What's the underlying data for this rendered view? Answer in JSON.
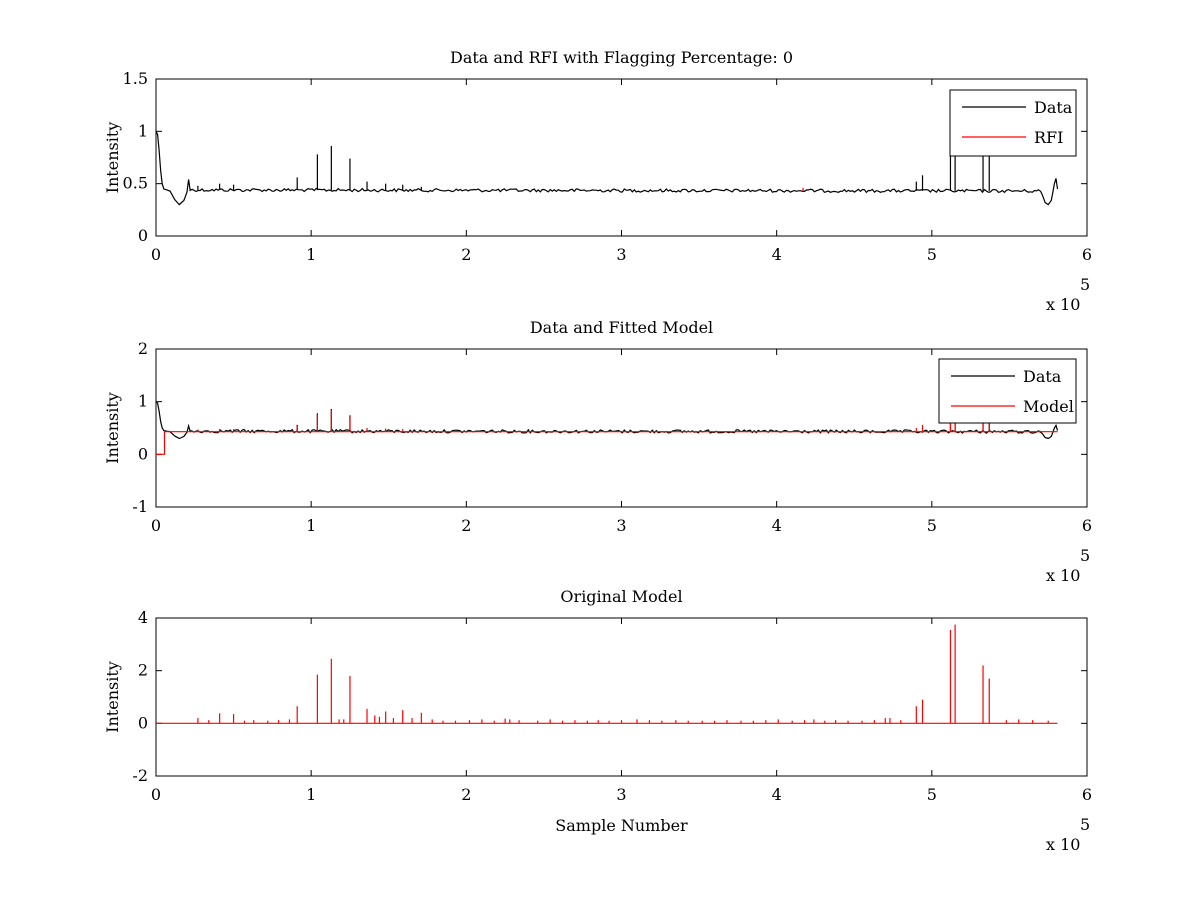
{
  "colors": {
    "data": "#000000",
    "red": "#ff0000",
    "axis": "#000000",
    "background": "#ffffff"
  },
  "chart_data": [
    {
      "type": "line",
      "title": "Data and RFI with Flagging Percentage: 0",
      "xlabel": "",
      "ylabel": "Intensity",
      "xlim": [
        0,
        600000
      ],
      "ylim": [
        0,
        1.5
      ],
      "xticks": [
        "0",
        "1",
        "2",
        "3",
        "4",
        "5",
        "6"
      ],
      "yticks": [
        "0",
        "0.5",
        "1",
        "1.5"
      ],
      "xexponent": {
        "base": "x 10",
        "power": "5"
      },
      "legend": {
        "position": "top-right",
        "entries": [
          "Data",
          "RFI"
        ]
      },
      "series": [
        {
          "name": "Data",
          "color": "#000000",
          "baseline": [
            [
              0,
              1.0
            ],
            [
              1000,
              0.97
            ],
            [
              2000,
              0.82
            ],
            [
              3000,
              0.62
            ],
            [
              4000,
              0.5
            ],
            [
              5000,
              0.45
            ],
            [
              7000,
              0.44
            ],
            [
              9000,
              0.43
            ],
            [
              12000,
              0.35
            ],
            [
              15000,
              0.3
            ],
            [
              18000,
              0.34
            ],
            [
              20000,
              0.42
            ],
            [
              21000,
              0.54
            ],
            [
              22000,
              0.44
            ],
            [
              570000,
              0.43
            ],
            [
              571000,
              0.4
            ],
            [
              573000,
              0.32
            ],
            [
              575000,
              0.3
            ],
            [
              577000,
              0.34
            ],
            [
              579000,
              0.5
            ],
            [
              580000,
              0.55
            ],
            [
              581000,
              0.45
            ]
          ],
          "spikes": [
            [
              27000,
              0.48
            ],
            [
              41000,
              0.5
            ],
            [
              50000,
              0.49
            ],
            [
              91000,
              0.56
            ],
            [
              104000,
              0.78
            ],
            [
              113000,
              0.86
            ],
            [
              125000,
              0.74
            ],
            [
              136000,
              0.52
            ],
            [
              148000,
              0.5
            ],
            [
              159000,
              0.49
            ],
            [
              171000,
              0.47
            ],
            [
              490000,
              0.52
            ],
            [
              494000,
              0.58
            ],
            [
              512000,
              1.0
            ],
            [
              515000,
              1.0
            ],
            [
              533000,
              1.0
            ],
            [
              537000,
              1.0
            ]
          ]
        },
        {
          "name": "RFI",
          "color": "#ff0000",
          "spikes": [
            [
              417000,
              0.46
            ]
          ]
        }
      ]
    },
    {
      "type": "line",
      "title": "Data and Fitted Model",
      "xlabel": "",
      "ylabel": "Intensity",
      "xlim": [
        0,
        600000
      ],
      "ylim": [
        -1,
        2
      ],
      "xticks": [
        "0",
        "1",
        "2",
        "3",
        "4",
        "5",
        "6"
      ],
      "yticks": [
        "-1",
        "0",
        "1",
        "2"
      ],
      "xexponent": {
        "base": "x 10",
        "power": "5"
      },
      "legend": {
        "position": "top-right",
        "entries": [
          "Data",
          "Model"
        ]
      },
      "series": [
        {
          "name": "Data",
          "color": "#000000",
          "baseline": [
            [
              0,
              1.0
            ],
            [
              1000,
              0.97
            ],
            [
              2000,
              0.82
            ],
            [
              3000,
              0.62
            ],
            [
              4000,
              0.5
            ],
            [
              5000,
              0.45
            ],
            [
              7000,
              0.44
            ],
            [
              9000,
              0.43
            ],
            [
              12000,
              0.35
            ],
            [
              15000,
              0.3
            ],
            [
              18000,
              0.34
            ],
            [
              20000,
              0.42
            ],
            [
              21000,
              0.54
            ],
            [
              22000,
              0.44
            ],
            [
              570000,
              0.43
            ],
            [
              571000,
              0.4
            ],
            [
              573000,
              0.32
            ],
            [
              575000,
              0.3
            ],
            [
              577000,
              0.34
            ],
            [
              579000,
              0.5
            ],
            [
              580000,
              0.55
            ],
            [
              581000,
              0.45
            ]
          ],
          "spikes": [
            [
              91000,
              0.56
            ],
            [
              104000,
              0.78
            ],
            [
              113000,
              0.86
            ],
            [
              125000,
              0.74
            ],
            [
              512000,
              1.0
            ],
            [
              515000,
              1.0
            ],
            [
              533000,
              1.0
            ],
            [
              537000,
              1.0
            ]
          ]
        },
        {
          "name": "Model",
          "color": "#ff0000",
          "baseline": [
            [
              0,
              0.0
            ],
            [
              5500,
              0.0
            ],
            [
              5500,
              0.43
            ],
            [
              581000,
              0.43
            ]
          ],
          "spikes": [
            [
              27000,
              0.47
            ],
            [
              41000,
              0.48
            ],
            [
              50000,
              0.48
            ],
            [
              91000,
              0.54
            ],
            [
              104000,
              0.76
            ],
            [
              113000,
              0.84
            ],
            [
              125000,
              0.72
            ],
            [
              136000,
              0.5
            ],
            [
              148000,
              0.49
            ],
            [
              159000,
              0.48
            ],
            [
              490000,
              0.5
            ],
            [
              494000,
              0.56
            ],
            [
              512000,
              1.0
            ],
            [
              515000,
              1.0
            ],
            [
              533000,
              1.0
            ],
            [
              537000,
              1.0
            ]
          ]
        }
      ]
    },
    {
      "type": "line",
      "title": "Original Model",
      "xlabel": "Sample Number",
      "ylabel": "Intensity",
      "xlim": [
        0,
        600000
      ],
      "ylim": [
        -2,
        4
      ],
      "xticks": [
        "0",
        "1",
        "2",
        "3",
        "4",
        "5",
        "6"
      ],
      "yticks": [
        "-2",
        "0",
        "2",
        "4"
      ],
      "xexponent": {
        "base": "x 10",
        "power": "5"
      },
      "series": [
        {
          "name": "",
          "color": "#ff0000",
          "baseline": [
            [
              0,
              0.0
            ],
            [
              581000,
              0.0
            ]
          ],
          "spikes": [
            [
              27000,
              0.2
            ],
            [
              34000,
              0.12
            ],
            [
              41000,
              0.38
            ],
            [
              50000,
              0.35
            ],
            [
              57000,
              0.1
            ],
            [
              63000,
              0.12
            ],
            [
              72000,
              0.1
            ],
            [
              79000,
              0.12
            ],
            [
              86000,
              0.15
            ],
            [
              91000,
              0.65
            ],
            [
              104000,
              1.85
            ],
            [
              113000,
              2.45
            ],
            [
              118000,
              0.15
            ],
            [
              121000,
              0.15
            ],
            [
              125000,
              1.8
            ],
            [
              136000,
              0.55
            ],
            [
              141000,
              0.3
            ],
            [
              144000,
              0.25
            ],
            [
              148000,
              0.45
            ],
            [
              153000,
              0.2
            ],
            [
              159000,
              0.5
            ],
            [
              165000,
              0.2
            ],
            [
              171000,
              0.4
            ],
            [
              178000,
              0.15
            ],
            [
              185000,
              0.1
            ],
            [
              193000,
              0.1
            ],
            [
              202000,
              0.12
            ],
            [
              210000,
              0.15
            ],
            [
              218000,
              0.1
            ],
            [
              225000,
              0.18
            ],
            [
              228000,
              0.15
            ],
            [
              234000,
              0.12
            ],
            [
              246000,
              0.1
            ],
            [
              254000,
              0.15
            ],
            [
              262000,
              0.1
            ],
            [
              270000,
              0.12
            ],
            [
              278000,
              0.1
            ],
            [
              285000,
              0.12
            ],
            [
              292000,
              0.1
            ],
            [
              300000,
              0.12
            ],
            [
              310000,
              0.15
            ],
            [
              318000,
              0.12
            ],
            [
              326000,
              0.1
            ],
            [
              335000,
              0.12
            ],
            [
              343000,
              0.1
            ],
            [
              352000,
              0.1
            ],
            [
              360000,
              0.1
            ],
            [
              368000,
              0.12
            ],
            [
              377000,
              0.1
            ],
            [
              385000,
              0.1
            ],
            [
              393000,
              0.12
            ],
            [
              401000,
              0.15
            ],
            [
              410000,
              0.1
            ],
            [
              418000,
              0.12
            ],
            [
              424000,
              0.15
            ],
            [
              431000,
              0.1
            ],
            [
              438000,
              0.12
            ],
            [
              446000,
              0.1
            ],
            [
              455000,
              0.1
            ],
            [
              463000,
              0.12
            ],
            [
              470000,
              0.2
            ],
            [
              473000,
              0.2
            ],
            [
              480000,
              0.12
            ],
            [
              490000,
              0.65
            ],
            [
              494000,
              0.9
            ],
            [
              512000,
              3.55
            ],
            [
              515000,
              3.75
            ],
            [
              533000,
              2.2
            ],
            [
              537000,
              1.7
            ],
            [
              548000,
              0.12
            ],
            [
              556000,
              0.15
            ],
            [
              565000,
              0.12
            ],
            [
              575000,
              0.1
            ]
          ]
        }
      ]
    }
  ]
}
